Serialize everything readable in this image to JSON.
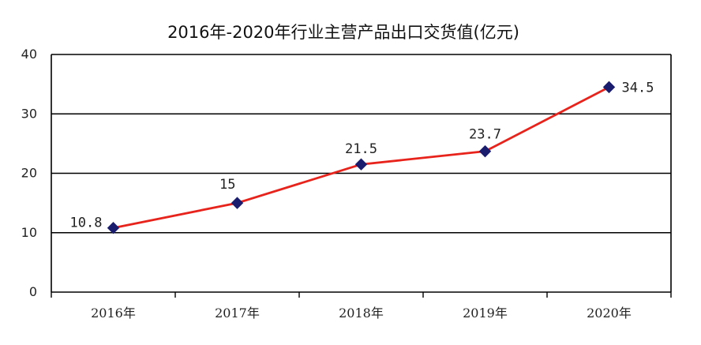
{
  "chart_data": {
    "type": "line",
    "title": "2016年-2020年行业主营产品出口交货值(亿元)",
    "xlabel": "",
    "ylabel": "",
    "categories": [
      "2016年",
      "2017年",
      "2018年",
      "2019年",
      "2020年"
    ],
    "series": [
      {
        "values": [
          10.8,
          15,
          21.5,
          23.7,
          34.5
        ],
        "data_labels": [
          "10.8",
          "15",
          "21.5",
          "23.7",
          "34.5"
        ],
        "line_color": "#E8231C",
        "marker_color": "#1A1C6E",
        "marker": "diamond"
      }
    ],
    "ylim": [
      0,
      40
    ],
    "yticks": [
      0,
      10,
      20,
      30,
      40
    ],
    "y_tick_labels": [
      "0",
      "10",
      "20",
      "30",
      "40"
    ],
    "grid": true,
    "legend": "none",
    "gridline_color": "#000000"
  }
}
